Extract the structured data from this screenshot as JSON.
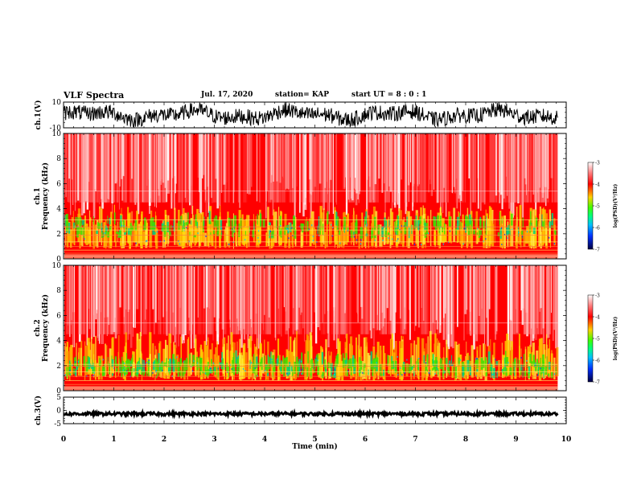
{
  "header": {
    "title": "VLF Spectra",
    "date": "Jul. 17, 2020",
    "station": "station= KAP",
    "start": "start  UT =  8 : 0 : 1"
  },
  "colorbar_labels": [
    "-3",
    "-4",
    "-5",
    "-6",
    "-7"
  ],
  "colorbar_unit": "log(PSD)(V²/Hz)",
  "colors": {
    "spectrogram_base": "#ff0000",
    "line": "#000000"
  },
  "chart_data": [
    {
      "type": "line",
      "id": "ch1-waveform",
      "ylabel": "ch.1(V)",
      "ylim": [
        -10,
        10
      ],
      "yticks": [
        "10",
        "-10"
      ],
      "x_range": [
        0,
        9.83
      ],
      "description_values": "noisy waveform oscillating mostly between -10 and 10 V"
    },
    {
      "type": "heatmap",
      "id": "ch1-spectrogram",
      "ylabel_channel": "ch.1",
      "ylabel": "Frequency (kHz)",
      "ylim": [
        0,
        10
      ],
      "yticks": [
        "0",
        "2",
        "4",
        "6",
        "8",
        "10"
      ],
      "colorbar_range": [
        -7,
        -3
      ],
      "x_range": [
        0,
        9.83
      ]
    },
    {
      "type": "heatmap",
      "id": "ch2-spectrogram",
      "ylabel_channel": "ch.2",
      "ylabel": "Frequency (kHz)",
      "ylim": [
        0,
        10
      ],
      "yticks": [
        "0",
        "2",
        "4",
        "6",
        "8",
        "10"
      ],
      "colorbar_range": [
        -7,
        -3
      ],
      "x_range": [
        0,
        9.83
      ]
    },
    {
      "type": "line",
      "id": "ch3-waveform",
      "ylabel": "ch.3(V)",
      "ylim": [
        -5,
        5
      ],
      "yticks": [
        "5",
        "0",
        "-5"
      ],
      "x_range": [
        0,
        9.83
      ],
      "level": -1.3
    }
  ],
  "xaxis": {
    "label": "Time (min)",
    "ticks": [
      "0",
      "1",
      "2",
      "3",
      "4",
      "5",
      "6",
      "7",
      "8",
      "9",
      "10"
    ],
    "xlim": [
      0,
      10
    ]
  }
}
